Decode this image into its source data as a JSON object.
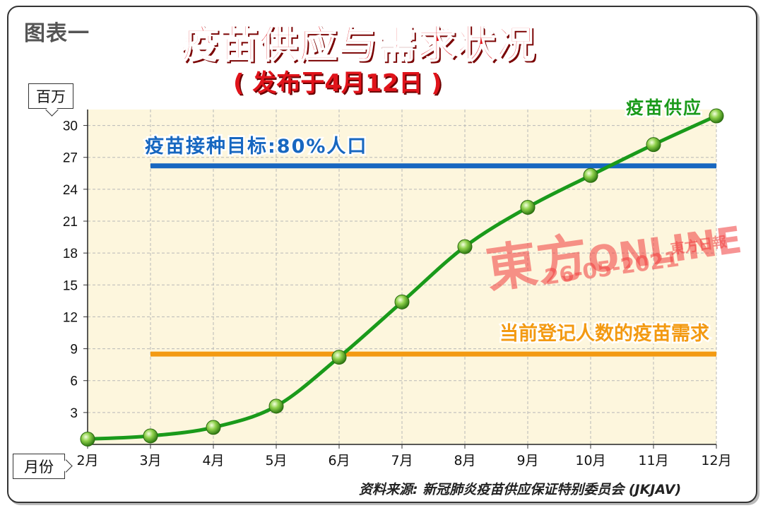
{
  "header": {
    "figure_label": "图表一",
    "title": "疫苗供应与需求状况",
    "subtitle": "( 发布于4月12日 )"
  },
  "axis": {
    "y_unit": "百万",
    "x_unit": "月份"
  },
  "source": "资料来源: 新冠肺炎疫苗供应保证特别委员会 (JKJAV)",
  "watermark": {
    "brand": "東方",
    "brand_latin": "ONLINE",
    "date": "26-05-2021",
    "paper": "東方日報"
  },
  "colors": {
    "title_red": "#e0141b",
    "supply_green": "#1a9a1a",
    "target_blue": "#1767c0",
    "demand_orange": "#f39a12",
    "plot_bg": "#fdf6dd",
    "grid": "#b8b8b8"
  },
  "chart_data": {
    "type": "line",
    "categories": [
      "2月",
      "3月",
      "4月",
      "5月",
      "6月",
      "7月",
      "8月",
      "9月",
      "10月",
      "11月",
      "12月"
    ],
    "ylim": [
      0,
      31.5
    ],
    "yticks": [
      3,
      6,
      9,
      12,
      15,
      18,
      21,
      24,
      27,
      30
    ],
    "ylabel": "百万",
    "xlabel": "月份",
    "grid": true,
    "series": [
      {
        "name": "疫苗供应",
        "style": "line-markers",
        "color": "#1a9a1a",
        "values": [
          0.5,
          0.8,
          1.6,
          3.6,
          8.2,
          13.4,
          18.6,
          22.3,
          25.3,
          28.2,
          30.9
        ]
      },
      {
        "name": "疫苗接种目标:80%人口",
        "style": "hline",
        "color": "#1767c0",
        "value": 26.2,
        "x_start": "3月",
        "x_end": "12月"
      },
      {
        "name": "当前登记人数的疫苗需求",
        "style": "hline",
        "color": "#f39a12",
        "value": 8.5,
        "x_start": "3月",
        "x_end": "12月"
      }
    ]
  }
}
